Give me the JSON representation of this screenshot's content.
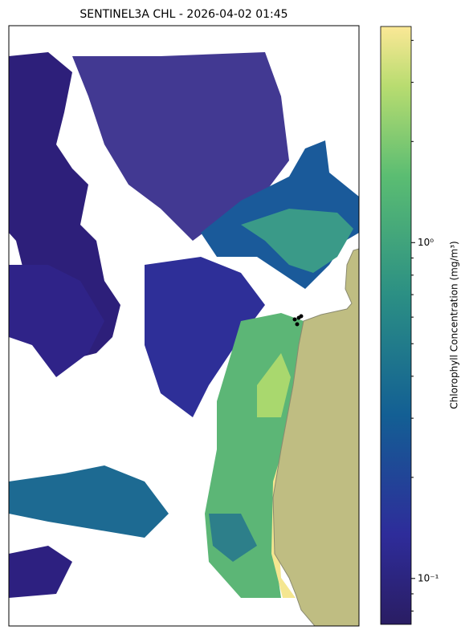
{
  "map": {
    "title": "SENTINEL3A CHL - 2026-04-02 01:45",
    "colorbar": {
      "label": "Chlorophyll Concentration (mg/m³)",
      "scale": "log",
      "lim": [
        0.073,
        4.4
      ],
      "ticks": [
        {
          "value": 0.1,
          "label": "10⁻¹"
        },
        {
          "value": 1,
          "label": "10⁰"
        }
      ],
      "minor_ticks": [
        0.08,
        0.09,
        0.2,
        0.3,
        0.4,
        0.5,
        0.6,
        0.7,
        0.8,
        0.9,
        2,
        3,
        4
      ]
    }
  }
}
